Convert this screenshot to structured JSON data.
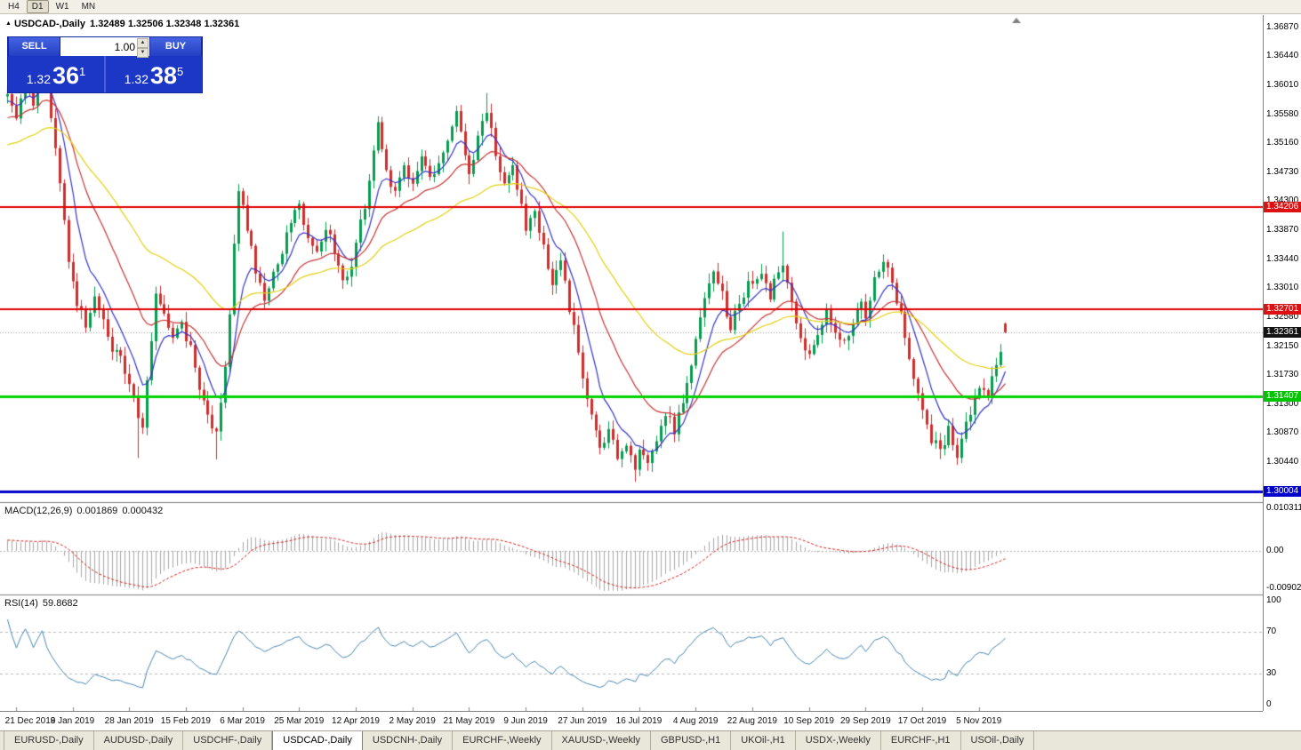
{
  "toolbar": {
    "timeframes": [
      {
        "label": "H4",
        "active": false
      },
      {
        "label": "D1",
        "active": true
      },
      {
        "label": "W1",
        "active": false
      },
      {
        "label": "MN",
        "active": false
      }
    ]
  },
  "chart": {
    "symbol_title": "USDCAD-,Daily",
    "ohlc_text": "1.32489 1.32506 1.32348 1.32361"
  },
  "trade_panel": {
    "sell_label": "SELL",
    "buy_label": "BUY",
    "volume": "1.00",
    "sell_price": {
      "figure": "1.32",
      "pips": "36",
      "point": "1"
    },
    "buy_price": {
      "figure": "1.32",
      "pips": "38",
      "point": "5"
    }
  },
  "price_axis": {
    "ticks": [
      "1.36870",
      "1.36440",
      "1.36010",
      "1.35580",
      "1.35160",
      "1.34730",
      "1.34300",
      "1.33870",
      "1.33440",
      "1.33010",
      "1.32580",
      "1.32150",
      "1.31730",
      "1.31300",
      "1.30870",
      "1.30440"
    ],
    "badges": [
      {
        "label": "1.34206",
        "value": 1.34206,
        "bg": "#dd1111"
      },
      {
        "label": "1.32701",
        "value": 1.32701,
        "bg": "#dd1111"
      },
      {
        "label": "1.32361",
        "value": 1.32361,
        "bg": "#141414"
      },
      {
        "label": "1.31407",
        "value": 1.31407,
        "bg": "#00c400"
      },
      {
        "label": "1.30004",
        "value": 1.30004,
        "bg": "#0000cc"
      }
    ]
  },
  "macd": {
    "title": "MACD(12,26,9)",
    "value_main": "0.001869",
    "value_signal": "0.000432",
    "axis": [
      {
        "label": "0.010311",
        "value": 0.010311
      },
      {
        "label": "0.00",
        "value": 0
      },
      {
        "label": "-0.0090203",
        "value": -0.0090203
      }
    ]
  },
  "rsi": {
    "title": "RSI(14)",
    "value": "59.8682",
    "axis": [
      {
        "label": "100",
        "value": 100
      },
      {
        "label": "70",
        "value": 70
      },
      {
        "label": "30",
        "value": 30
      },
      {
        "label": "0",
        "value": 0
      }
    ]
  },
  "date_axis": {
    "labels": [
      "21 Dec 2018",
      "9 Jan 2019",
      "28 Jan 2019",
      "15 Feb 2019",
      "6 Mar 2019",
      "25 Mar 2019",
      "12 Apr 2019",
      "2 May 2019",
      "21 May 2019",
      "9 Jun 2019",
      "27 Jun 2019",
      "16 Jul 2019",
      "4 Aug 2019",
      "22 Aug 2019",
      "10 Sep 2019",
      "29 Sep 2019",
      "17 Oct 2019",
      "5 Nov 2019"
    ],
    "bar_indices": [
      2,
      15,
      28,
      41,
      54,
      67,
      80,
      93,
      106,
      119,
      132,
      145,
      158,
      171,
      184,
      197,
      210,
      223
    ]
  },
  "tabs": {
    "active_index": 3,
    "items": [
      "EURUSD-,Daily",
      "AUDUSD-,Daily",
      "USDCHF-,Daily",
      "USDCAD-,Daily",
      "USDCNH-,Daily",
      "EURCHF-,Weekly",
      "XAUUSD-,Weekly",
      "GBPUSD-,H1",
      "UKOil-,H1",
      "USDX-,Weekly",
      "EURCHF-,H1",
      "USOil-,Daily"
    ]
  },
  "chart_data": {
    "type": "candlestick",
    "symbol": "USDCAD-",
    "timeframe": "Daily",
    "last_bar": {
      "open": 1.32489,
      "high": 1.32506,
      "low": 1.32348,
      "close": 1.32361
    },
    "current_price": 1.32361,
    "bars": 230,
    "y_range": [
      1.2985,
      1.3705
    ],
    "horizontal_levels": [
      {
        "price": 1.34206,
        "color": "#e00000",
        "width": 2
      },
      {
        "price": 1.32701,
        "color": "#e00000",
        "width": 2
      },
      {
        "price": 1.31407,
        "color": "#00d300",
        "width": 3
      },
      {
        "price": 1.30004,
        "color": "#0000cc",
        "width": 3
      }
    ],
    "close_path_anchors": [
      [
        0,
        1.3595
      ],
      [
        2,
        1.355
      ],
      [
        4,
        1.361
      ],
      [
        6,
        1.3575
      ],
      [
        8,
        1.365
      ],
      [
        10,
        1.3555
      ],
      [
        12,
        1.345
      ],
      [
        14,
        1.334
      ],
      [
        16,
        1.328
      ],
      [
        18,
        1.325
      ],
      [
        20,
        1.329
      ],
      [
        22,
        1.325
      ],
      [
        24,
        1.3215
      ],
      [
        26,
        1.32
      ],
      [
        28,
        1.316
      ],
      [
        30,
        1.3115
      ],
      [
        31,
        1.309
      ],
      [
        32,
        1.316
      ],
      [
        33,
        1.323
      ],
      [
        34,
        1.33
      ],
      [
        36,
        1.326
      ],
      [
        38,
        1.322
      ],
      [
        40,
        1.325
      ],
      [
        42,
        1.321
      ],
      [
        44,
        1.315
      ],
      [
        46,
        1.311
      ],
      [
        48,
        1.3085
      ],
      [
        50,
        1.318
      ],
      [
        51,
        1.326
      ],
      [
        52,
        1.337
      ],
      [
        53,
        1.3445
      ],
      [
        55,
        1.339
      ],
      [
        57,
        1.333
      ],
      [
        59,
        1.329
      ],
      [
        61,
        1.332
      ],
      [
        63,
        1.336
      ],
      [
        65,
        1.34
      ],
      [
        67,
        1.342
      ],
      [
        69,
        1.338
      ],
      [
        71,
        1.335
      ],
      [
        73,
        1.339
      ],
      [
        75,
        1.336
      ],
      [
        77,
        1.331
      ],
      [
        79,
        1.334
      ],
      [
        80,
        1.337
      ],
      [
        82,
        1.342
      ],
      [
        84,
        1.35
      ],
      [
        85,
        1.354
      ],
      [
        87,
        1.347
      ],
      [
        89,
        1.3445
      ],
      [
        91,
        1.348
      ],
      [
        93,
        1.3455
      ],
      [
        95,
        1.349
      ],
      [
        97,
        1.3465
      ],
      [
        99,
        1.349
      ],
      [
        101,
        1.352
      ],
      [
        103,
        1.356
      ],
      [
        104,
        1.354
      ],
      [
        106,
        1.347
      ],
      [
        108,
        1.352
      ],
      [
        110,
        1.3565
      ],
      [
        112,
        1.35
      ],
      [
        114,
        1.346
      ],
      [
        116,
        1.348
      ],
      [
        118,
        1.342
      ],
      [
        119,
        1.339
      ],
      [
        121,
        1.342
      ],
      [
        123,
        1.336
      ],
      [
        125,
        1.331
      ],
      [
        127,
        1.334
      ],
      [
        129,
        1.327
      ],
      [
        131,
        1.321
      ],
      [
        132,
        1.316
      ],
      [
        134,
        1.311
      ],
      [
        136,
        1.307
      ],
      [
        138,
        1.309
      ],
      [
        140,
        1.305
      ],
      [
        142,
        1.3075
      ],
      [
        144,
        1.303
      ],
      [
        145,
        1.306
      ],
      [
        147,
        1.304
      ],
      [
        149,
        1.308
      ],
      [
        151,
        1.312
      ],
      [
        153,
        1.309
      ],
      [
        155,
        1.313
      ],
      [
        157,
        1.318
      ],
      [
        158,
        1.323
      ],
      [
        160,
        1.329
      ],
      [
        162,
        1.333
      ],
      [
        164,
        1.329
      ],
      [
        166,
        1.324
      ],
      [
        168,
        1.328
      ],
      [
        170,
        1.331
      ],
      [
        171,
        1.33
      ],
      [
        173,
        1.332
      ],
      [
        175,
        1.329
      ],
      [
        177,
        1.333
      ],
      [
        178,
        1.334
      ],
      [
        180,
        1.328
      ],
      [
        182,
        1.323
      ],
      [
        184,
        1.32
      ],
      [
        186,
        1.324
      ],
      [
        188,
        1.327
      ],
      [
        190,
        1.324
      ],
      [
        192,
        1.322
      ],
      [
        194,
        1.325
      ],
      [
        196,
        1.328
      ],
      [
        197,
        1.326
      ],
      [
        199,
        1.331
      ],
      [
        201,
        1.334
      ],
      [
        203,
        1.331
      ],
      [
        205,
        1.326
      ],
      [
        207,
        1.32
      ],
      [
        209,
        1.315
      ],
      [
        210,
        1.312
      ],
      [
        212,
        1.308
      ],
      [
        214,
        1.306
      ],
      [
        216,
        1.309
      ],
      [
        218,
        1.3055
      ],
      [
        220,
        1.31
      ],
      [
        222,
        1.314
      ],
      [
        223,
        1.316
      ],
      [
        225,
        1.3145
      ],
      [
        227,
        1.319
      ],
      [
        229,
        1.3236
      ]
    ],
    "wick_events": [
      {
        "bar": 8,
        "high": 1.3665
      },
      {
        "bar": 30,
        "low": 1.305
      },
      {
        "bar": 48,
        "low": 1.3048
      },
      {
        "bar": 53,
        "high": 1.3455
      },
      {
        "bar": 110,
        "high": 1.359
      },
      {
        "bar": 144,
        "low": 1.3015
      },
      {
        "bar": 178,
        "high": 1.3385
      },
      {
        "bar": 218,
        "low": 1.304
      }
    ],
    "moving_averages": [
      {
        "period": 8,
        "color": "#3434c8"
      },
      {
        "period": 21,
        "color": "#c83434"
      },
      {
        "period": 50,
        "color": "#e3d112"
      }
    ],
    "candle_up_color": "#089b50",
    "candle_down_color": "#cf2e2e",
    "macd_range": [
      -0.0105,
      0.0115
    ],
    "macd_histogram_color": "#a6a6a6",
    "macd_signal_color": "#d42020",
    "rsi_color": "#4a86ae",
    "rsi_levels": [
      70,
      30
    ]
  }
}
